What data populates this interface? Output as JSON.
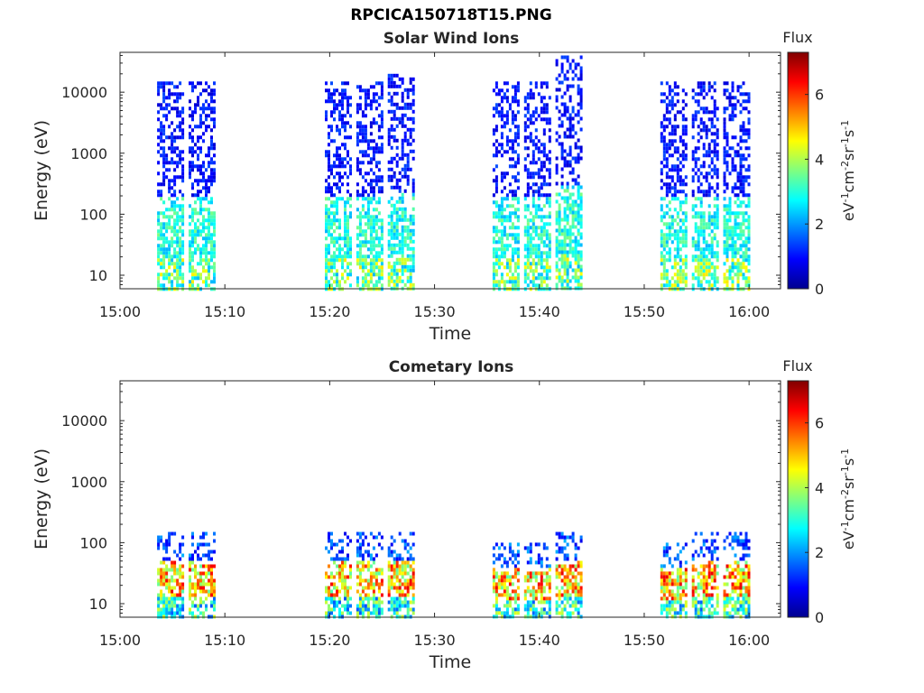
{
  "title": "RPCICA150718T15.PNG",
  "chart_data": [
    {
      "type": "heatmap",
      "title": "Solar Wind Ions",
      "xlabel": "Time",
      "ylabel": "Energy (eV)",
      "x_ticks": [
        "15:00",
        "15:10",
        "15:20",
        "15:30",
        "15:40",
        "15:50",
        "16:00"
      ],
      "xlim": [
        "15:00",
        "16:03"
      ],
      "y_scale": "log",
      "y_ticks": [
        "10",
        "100",
        "1000",
        "10000"
      ],
      "ylim": [
        6,
        45000
      ],
      "colorbar": {
        "title": "Flux",
        "label": "eV-1cm-2sr-1s-1",
        "ticks": [
          "0",
          "2",
          "4",
          "6"
        ],
        "range": [
          0,
          7.3
        ]
      },
      "bursts": [
        {
          "time": "15:05",
          "max_energy": 15000
        },
        {
          "time": "15:08",
          "max_energy": 15000
        },
        {
          "time": "15:21",
          "max_energy": 15000
        },
        {
          "time": "15:24",
          "max_energy": 15000
        },
        {
          "time": "15:27",
          "max_energy": 20000
        },
        {
          "time": "15:37",
          "max_energy": 15000
        },
        {
          "time": "15:40",
          "max_energy": 15000
        },
        {
          "time": "15:43",
          "max_energy": 40000
        },
        {
          "time": "15:53",
          "max_energy": 15000
        },
        {
          "time": "15:56",
          "max_energy": 15000
        },
        {
          "time": "15:59",
          "max_energy": 15000
        }
      ]
    },
    {
      "type": "heatmap",
      "title": "Cometary Ions",
      "xlabel": "Time",
      "ylabel": "Energy (eV)",
      "x_ticks": [
        "15:00",
        "15:10",
        "15:20",
        "15:30",
        "15:40",
        "15:50",
        "16:00"
      ],
      "xlim": [
        "15:00",
        "16:03"
      ],
      "y_scale": "log",
      "y_ticks": [
        "10",
        "100",
        "1000",
        "10000"
      ],
      "ylim": [
        6,
        45000
      ],
      "colorbar": {
        "title": "Flux",
        "label": "eV-1cm-2sr-1s-1",
        "ticks": [
          "0",
          "2",
          "4",
          "6"
        ],
        "range": [
          0,
          7.3
        ]
      },
      "bursts": [
        {
          "time": "15:05",
          "max_energy": 150
        },
        {
          "time": "15:08",
          "max_energy": 150
        },
        {
          "time": "15:21",
          "max_energy": 150
        },
        {
          "time": "15:24",
          "max_energy": 150
        },
        {
          "time": "15:27",
          "max_energy": 150
        },
        {
          "time": "15:37",
          "max_energy": 100
        },
        {
          "time": "15:40",
          "max_energy": 100
        },
        {
          "time": "15:43",
          "max_energy": 150
        },
        {
          "time": "15:53",
          "max_energy": 100
        },
        {
          "time": "15:56",
          "max_energy": 150
        },
        {
          "time": "15:59",
          "max_energy": 150
        }
      ]
    }
  ]
}
